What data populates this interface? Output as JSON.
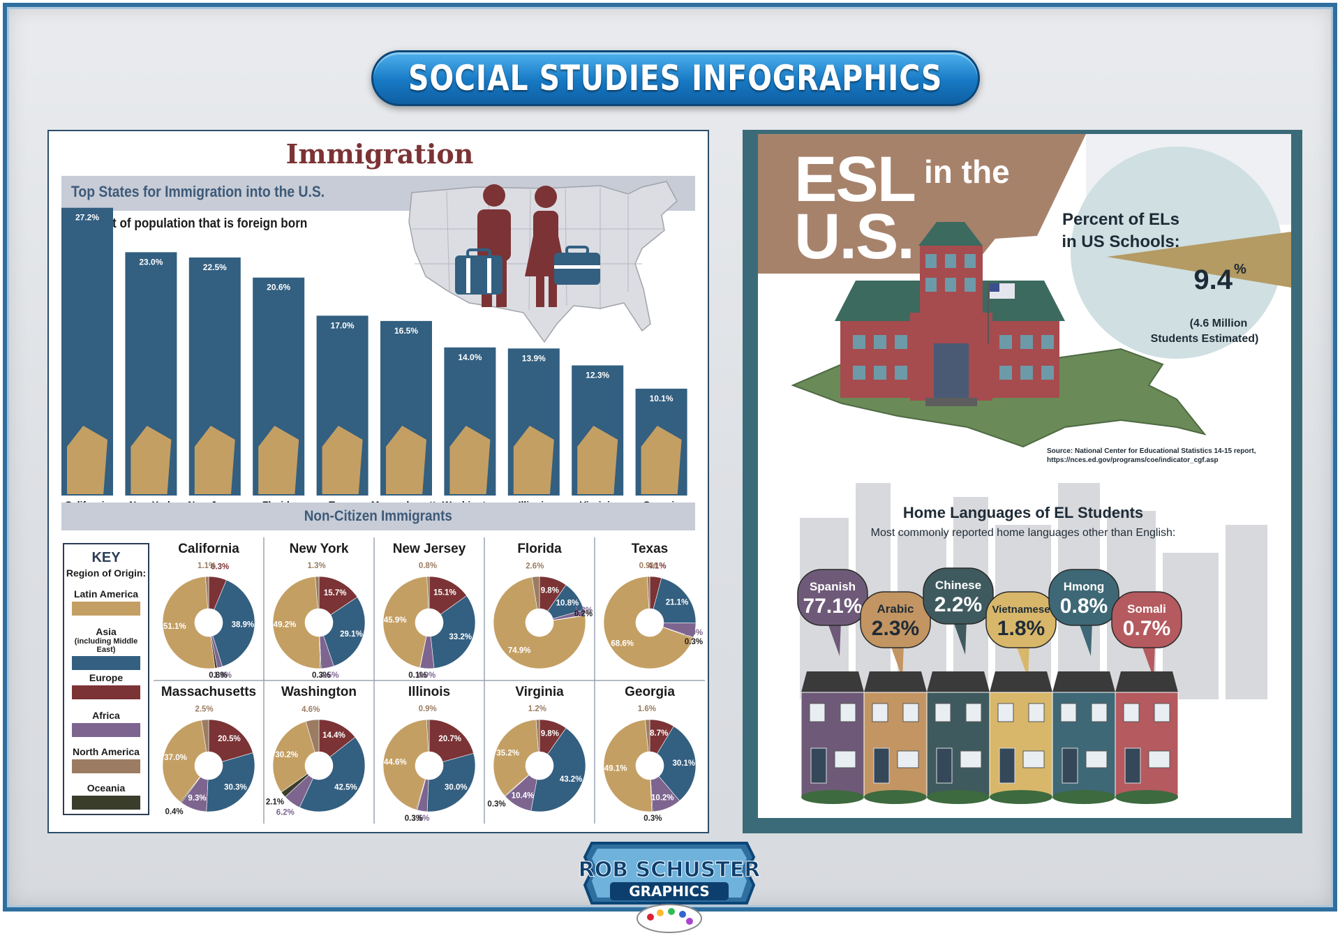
{
  "banner": {
    "title": "SOCIAL STUDIES INFOGRAPHICS"
  },
  "immigration": {
    "title": "Immigration",
    "header": "Top States for Immigration into the U.S.",
    "subheader": "Percent of population that is foreign born",
    "noncitizen_header": "Non-Citizen Immigrants"
  },
  "key": {
    "title": "KEY",
    "subtitle": "Region of Origin:",
    "items": [
      {
        "label": "Latin America",
        "note": "",
        "color": "#c49f63"
      },
      {
        "label": "Asia",
        "note": "(including Middle East)",
        "color": "#335f80"
      },
      {
        "label": "Europe",
        "note": "",
        "color": "#7b3335"
      },
      {
        "label": "Africa",
        "note": "",
        "color": "#7d6590"
      },
      {
        "label": "North America",
        "note": "",
        "color": "#9b7c62"
      },
      {
        "label": "Oceania",
        "note": "",
        "color": "#3b3d2b"
      }
    ]
  },
  "chart_data": [
    {
      "type": "bar",
      "title": "Top States for Immigration into the U.S.",
      "subtitle": "Percent of population that is foreign born",
      "categories": [
        "California",
        "New York",
        "New Jersey",
        "Florida",
        "Texas",
        "Massachusetts",
        "Washington",
        "Illinois",
        "Virginia",
        "Georgia"
      ],
      "values": [
        27.2,
        23.0,
        22.5,
        20.6,
        17.0,
        16.5,
        14.0,
        13.9,
        12.3,
        10.1
      ],
      "labels": [
        "27.2%",
        "23.0%",
        "22.5%",
        "20.6%",
        "17.0%",
        "16.5%",
        "14.0%",
        "13.9%",
        "12.3%",
        "10.1%"
      ],
      "bar_color": "#335f80",
      "state_color": "#c49f63"
    },
    {
      "type": "pie",
      "title": "Non-Citizen Immigrants",
      "series_order": [
        "Latin America",
        "Asia",
        "Europe",
        "Africa",
        "North America",
        "Oceania"
      ],
      "states": [
        {
          "name": "California",
          "values": [
            51.1,
            38.9,
            6.3,
            1.8,
            1.1,
            0.8
          ],
          "labels": [
            "51.1%",
            "38.9%",
            "6.3%",
            "1.8%",
            "1.1%",
            "0.8%"
          ]
        },
        {
          "name": "New York",
          "values": [
            49.2,
            29.1,
            15.7,
            4.5,
            1.3,
            0.3
          ],
          "labels": [
            "49.2%",
            "29.1%",
            "15.7%",
            "4.5%",
            "1.3%",
            "0.3%"
          ]
        },
        {
          "name": "New Jersey",
          "values": [
            45.9,
            33.2,
            15.1,
            4.9,
            0.8,
            0.1
          ],
          "labels": [
            "45.9%",
            "33.2%",
            "15.1%",
            "4.9%",
            "0.8%",
            "0.1%"
          ]
        },
        {
          "name": "Florida",
          "values": [
            74.9,
            10.8,
            9.8,
            1.8,
            2.6,
            0.2
          ],
          "labels": [
            "74.9%",
            "10.8%",
            "9.8%",
            "1.8%",
            "2.6%",
            "0.2%"
          ]
        },
        {
          "name": "Texas",
          "values": [
            68.6,
            21.1,
            4.1,
            5.0,
            0.9,
            0.3
          ],
          "labels": [
            "68.6%",
            "21.1%",
            "4.1%",
            "5.0%",
            "0.9%",
            "0.3%"
          ]
        },
        {
          "name": "Massachusetts",
          "values": [
            37.0,
            30.3,
            20.5,
            9.3,
            2.5,
            0.4
          ],
          "labels": [
            "37.0%",
            "30.3%",
            "20.5%",
            "9.3%",
            "2.5%",
            "0.4%"
          ]
        },
        {
          "name": "Washington",
          "values": [
            30.2,
            42.5,
            14.4,
            6.2,
            4.6,
            2.1
          ],
          "labels": [
            "30.2%",
            "42.5%",
            "14.4%",
            "6.2%",
            "4.6%",
            "2.1%"
          ]
        },
        {
          "name": "Illinois",
          "values": [
            44.6,
            30.0,
            20.7,
            3.5,
            0.9,
            0.3
          ],
          "labels": [
            "44.6%",
            "30.0%",
            "20.7%",
            "3.5%",
            "0.9%",
            "0.3%"
          ]
        },
        {
          "name": "Virginia",
          "values": [
            35.2,
            43.2,
            9.8,
            10.4,
            1.2,
            0.3
          ],
          "labels": [
            "35.2%",
            "43.2%",
            "9.8%",
            "10.4%",
            "1.2%",
            "0.3%"
          ]
        },
        {
          "name": "Georgia",
          "values": [
            49.1,
            30.1,
            8.7,
            10.2,
            1.6,
            0.3
          ],
          "labels": [
            "49.1%",
            "30.1%",
            "8.7%",
            "10.2%",
            "1.6%",
            "0.3%"
          ]
        }
      ]
    },
    {
      "type": "pie",
      "title": "Percent of ELs in US Schools:",
      "values": [
        9.4
      ],
      "labels": [
        "9.4%"
      ],
      "note": "(4.6 Million Students Estimated)"
    },
    {
      "type": "bar",
      "title": "Home Languages of EL Students",
      "subtitle": "Most commonly reported home languages other than English:",
      "categories": [
        "Spanish",
        "Arabic",
        "Chinese",
        "Vietnamese",
        "Hmong",
        "Somali"
      ],
      "values": [
        77.1,
        2.3,
        2.2,
        1.8,
        0.8,
        0.7
      ],
      "labels": [
        "77.1%",
        "2.3%",
        "2.2%",
        "1.8%",
        "0.8%",
        "0.7%"
      ]
    }
  ],
  "esl": {
    "title_big": "ESL",
    "title_small": "in the",
    "title_us": "U.S.",
    "pct_title_1": "Percent of ELs",
    "pct_title_2": "in US Schools:",
    "pct_value": "9.4",
    "pct_sign": "%",
    "pct_note_1": "(4.6 Million",
    "pct_note_2": "Students Estimated)",
    "source_1": "Source: National Center for Educational Statistics 14-15 report,",
    "source_2": "https://nces.ed.gov/programs/coe/indicator_cgf.asp",
    "languages_title": "Home Languages of EL Students",
    "languages_sub": "Most commonly reported home languages other than English:",
    "bubble_colors": [
      "#6e5a78",
      "#c39563",
      "#3f5a5e",
      "#d8b76a",
      "#3e6876",
      "#b55a5f"
    ],
    "house_colors": [
      "#6e5a78",
      "#c39563",
      "#3f5a5e",
      "#d8b76a",
      "#3e6876",
      "#b55a5f"
    ]
  },
  "logo": {
    "line1": "ROB SCHUSTER",
    "line2": "GRAPHICS"
  }
}
